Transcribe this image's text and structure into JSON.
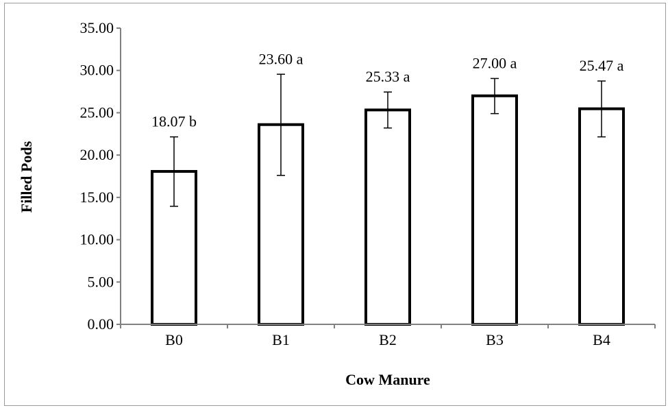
{
  "chart_data": {
    "type": "bar",
    "title": "",
    "xlabel": "Cow Manure",
    "ylabel": "Filled Pods",
    "ylim": [
      0,
      35
    ],
    "ytick_step": 5,
    "ytick_labels": [
      "0.00",
      "5.00",
      "10.00",
      "15.00",
      "20.00",
      "25.00",
      "30.00",
      "35.00"
    ],
    "categories": [
      "B0",
      "B1",
      "B2",
      "B3",
      "B4"
    ],
    "values": [
      18.07,
      23.6,
      25.33,
      27.0,
      25.47
    ],
    "error_bars": [
      {
        "low": 13.95,
        "high": 22.15
      },
      {
        "low": 17.6,
        "high": 29.55
      },
      {
        "low": 23.2,
        "high": 27.45
      },
      {
        "low": 24.9,
        "high": 29.05
      },
      {
        "low": 22.15,
        "high": 28.75
      }
    ],
    "data_labels": [
      "18.07 b",
      "23.60 a",
      "25.33 a",
      "27.00 a",
      "25.47 a"
    ],
    "grid": false,
    "legend": "none",
    "colors": {
      "bar_fill": "#ffffff",
      "bar_stroke": "#000000",
      "axis": "#808080"
    }
  }
}
